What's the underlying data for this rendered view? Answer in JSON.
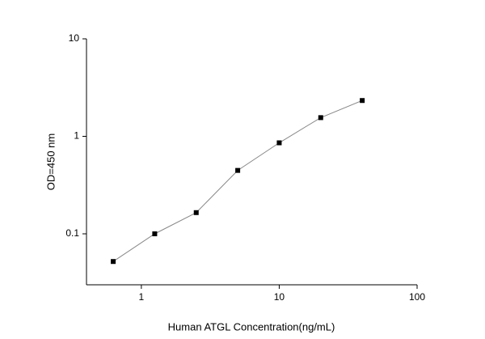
{
  "chart_data": {
    "type": "line",
    "x_label": "Human ATGL Concentration(ng/mL)",
    "y_label": "OD=450 nm",
    "x": [
      0.625,
      1.25,
      2.5,
      5,
      10,
      20,
      40
    ],
    "series": [
      {
        "color": "#000000",
        "values": [
          0.052,
          0.1,
          0.165,
          0.447,
          0.858,
          1.555,
          2.33
        ]
      }
    ],
    "xlim": [
      0.4,
      100
    ],
    "xticks": [
      1,
      10,
      100
    ],
    "xlog": true,
    "ylim": [
      0.03,
      10
    ],
    "yticks": [
      0.1,
      1,
      10
    ],
    "ylog": true
  }
}
